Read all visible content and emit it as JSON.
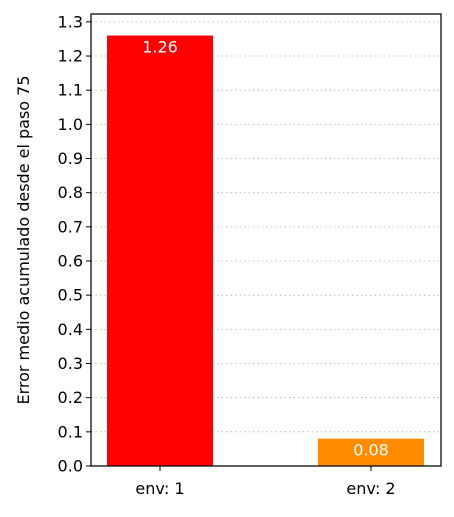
{
  "chart_data": {
    "type": "bar",
    "categories": [
      "env: 1",
      "env: 2"
    ],
    "values": [
      1.26,
      0.08
    ],
    "data_labels": [
      "1.26",
      "0.08"
    ],
    "colors": [
      "#ff0000",
      "#ff8c00"
    ],
    "title": "",
    "xlabel": "",
    "ylabel": "Error medio acumulado desde el paso 75",
    "ylim": [
      0,
      1.323
    ],
    "yticks": [
      "0.0",
      "0.1",
      "0.2",
      "0.3",
      "0.4",
      "0.5",
      "0.6",
      "0.7",
      "0.8",
      "0.9",
      "1.0",
      "1.1",
      "1.2",
      "1.3"
    ],
    "grid": "y-dotted",
    "legend": "none"
  }
}
